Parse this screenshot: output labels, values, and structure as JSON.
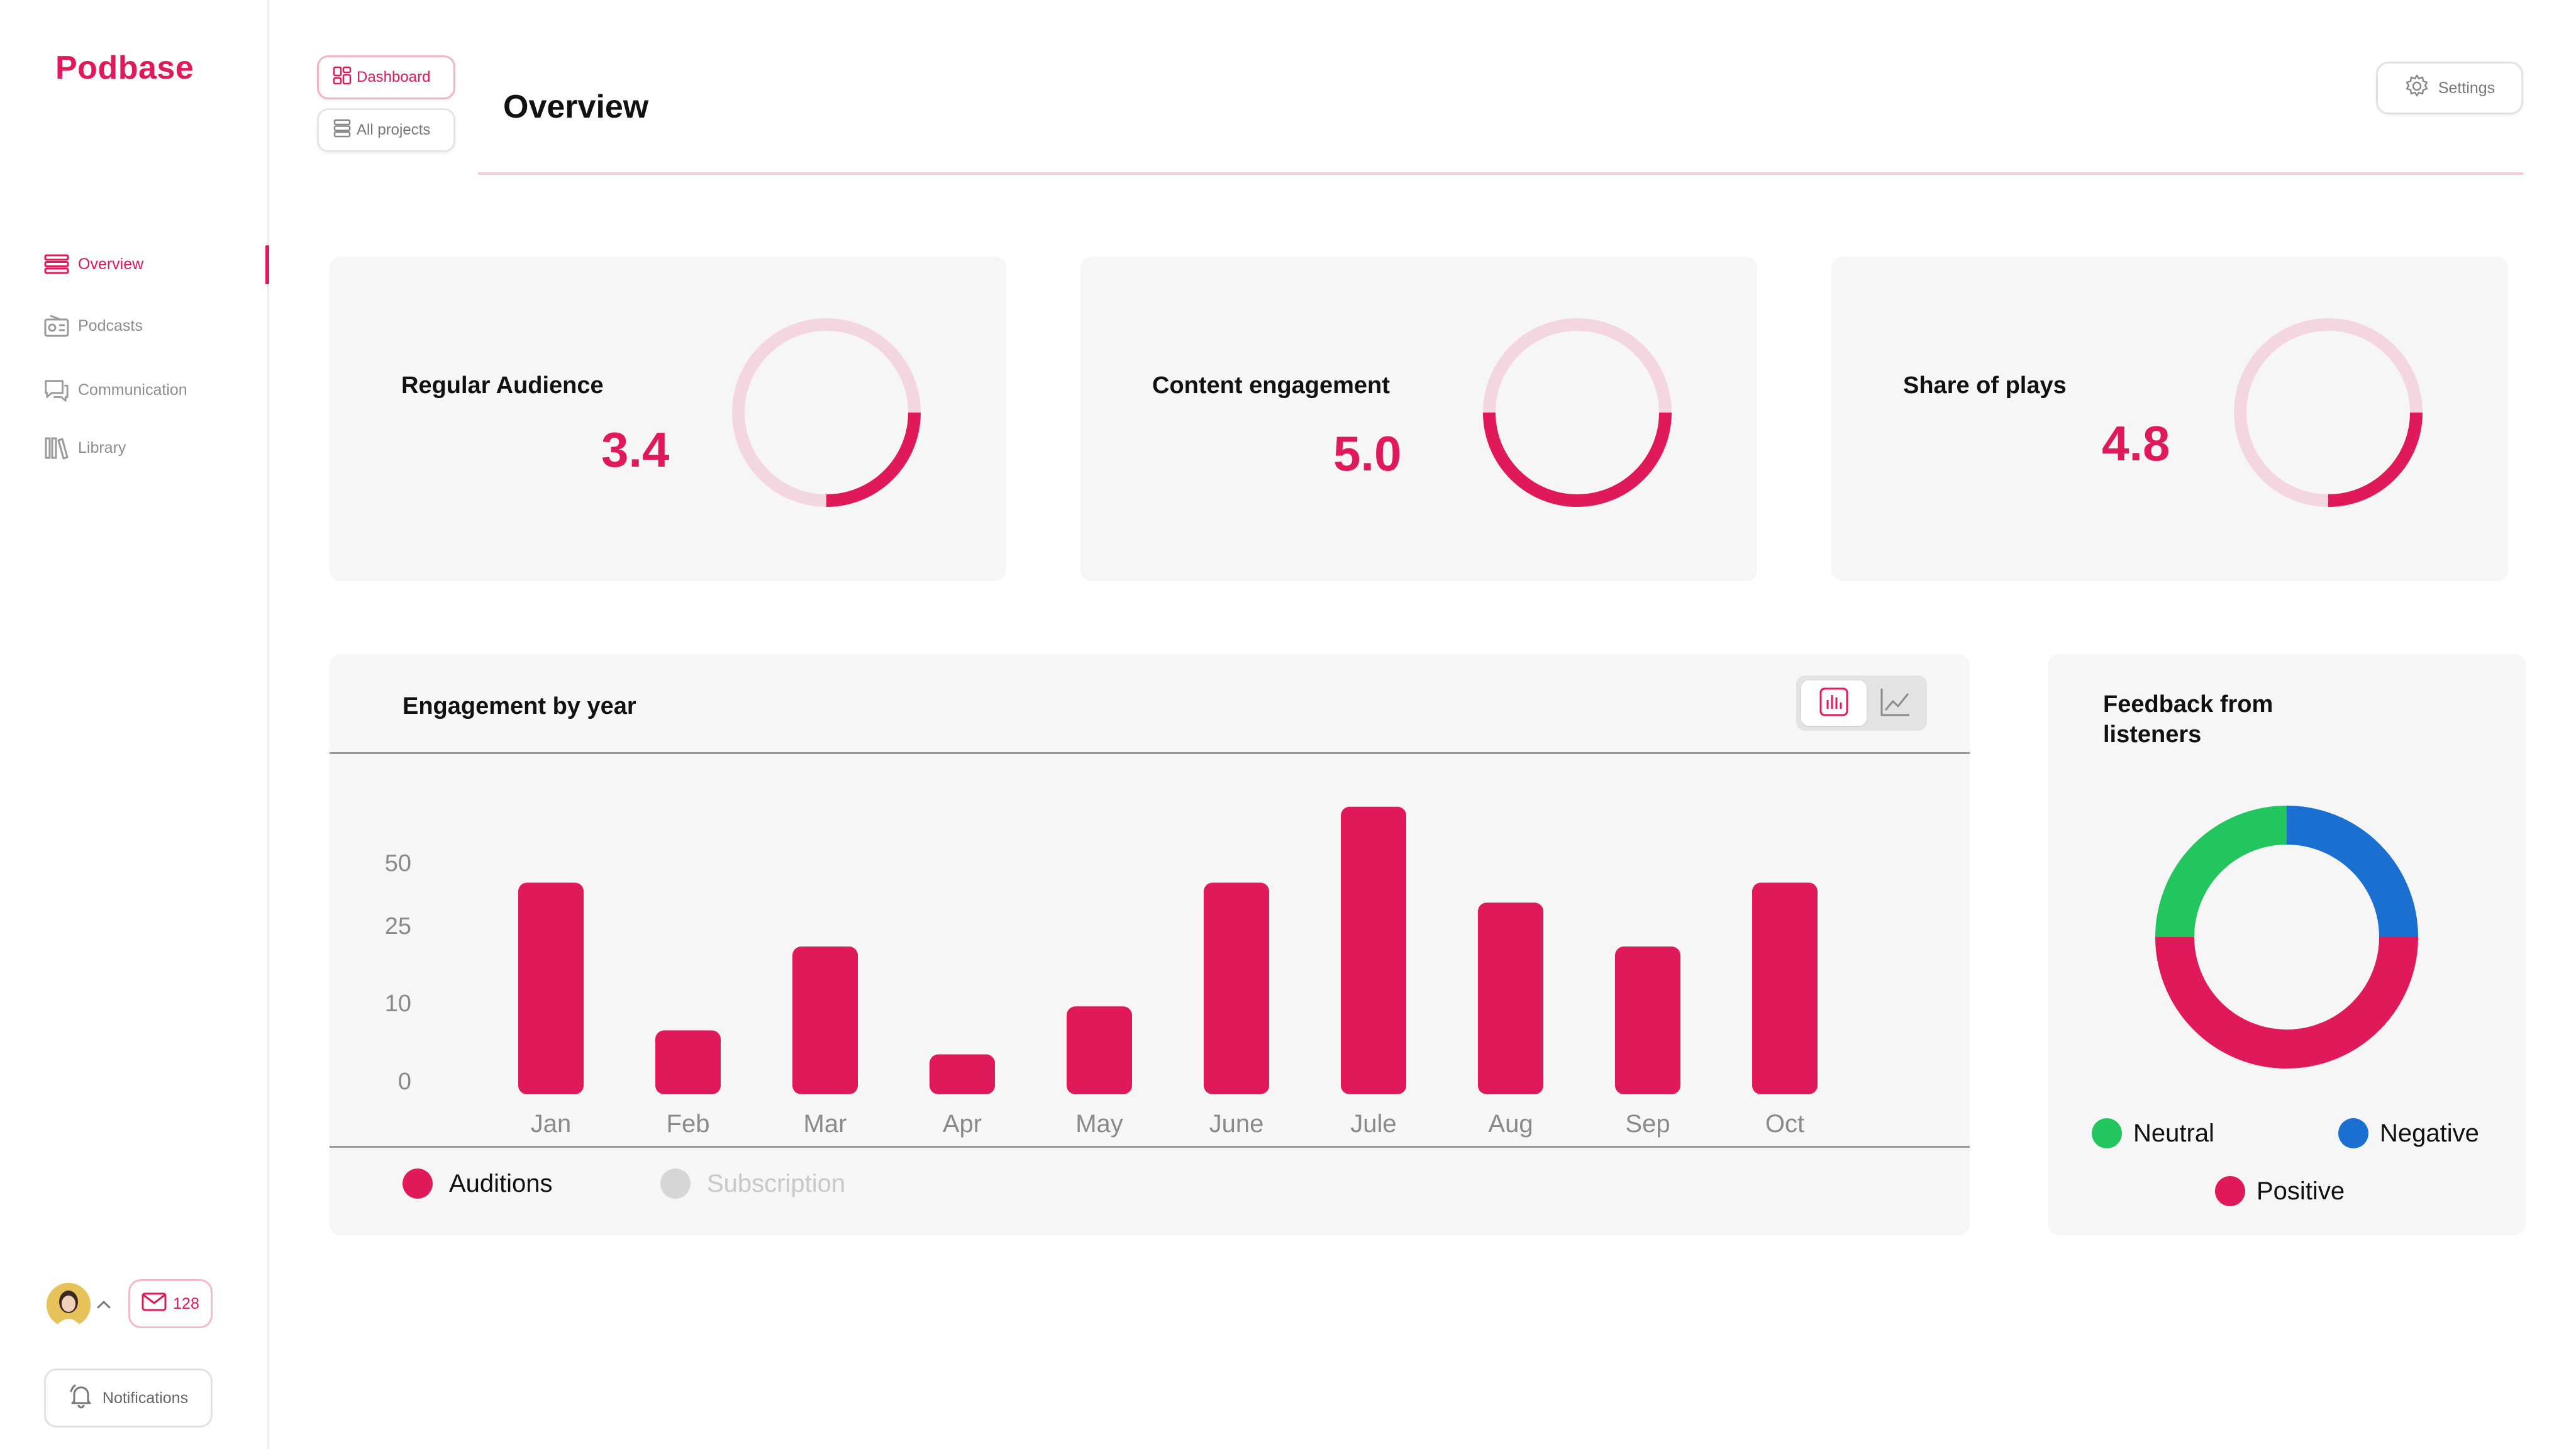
{
  "app": {
    "name": "Podbase"
  },
  "sidebar": {
    "items": [
      {
        "label": "Overview",
        "icon": "list-icon",
        "active": true
      },
      {
        "label": "Podcasts",
        "icon": "radio-icon",
        "active": false
      },
      {
        "label": "Communication",
        "icon": "chat-icon",
        "active": false
      },
      {
        "label": "Library",
        "icon": "books-icon",
        "active": false
      }
    ],
    "mail_count": "128",
    "notifications_label": "Notifications"
  },
  "header": {
    "dashboard_label": "Dashboard",
    "projects_label": "All projects",
    "title": "Overview",
    "settings_label": "Settings"
  },
  "kpis": [
    {
      "label": "Regular Audience",
      "value": "3.4",
      "progress": 0.25
    },
    {
      "label": "Content engagement",
      "value": "5.0",
      "progress": 0.5
    },
    {
      "label": "Share of plays",
      "value": "4.8",
      "progress": 0.25
    }
  ],
  "colors": {
    "accent": "#e0195a",
    "ring_track": "#f4d6e0",
    "neutral": "#22c55e",
    "negative": "#1a6fd1",
    "positive": "#e0195a",
    "subscription": "#d6d6d6"
  },
  "engagement": {
    "title": "Engagement by year",
    "legend": [
      {
        "label": "Auditions",
        "color": "#e0195a"
      },
      {
        "label": "Subscription",
        "color": "#d6d6d6"
      }
    ]
  },
  "chart_data": {
    "type": "bar",
    "title": "Engagement by year",
    "categories": [
      "Jan",
      "Feb",
      "Mar",
      "Apr",
      "May",
      "June",
      "Jule",
      "Aug",
      "Sep",
      "Oct"
    ],
    "y_ticks": [
      "50",
      "25",
      "10",
      "0"
    ],
    "y_tick_values": [
      50,
      25,
      10,
      0
    ],
    "series": [
      {
        "name": "Auditions",
        "values": [
          53,
          16,
          37,
          10,
          22,
          53,
          72,
          48,
          37,
          53
        ]
      }
    ]
  },
  "feedback": {
    "title": "Feedback from listeners",
    "segments": [
      {
        "label": "Positive",
        "share": 0.5,
        "color": "#e0195a"
      },
      {
        "label": "Neutral",
        "share": 0.25,
        "color": "#22c55e"
      },
      {
        "label": "Negative",
        "share": 0.25,
        "color": "#1a6fd1"
      }
    ]
  }
}
